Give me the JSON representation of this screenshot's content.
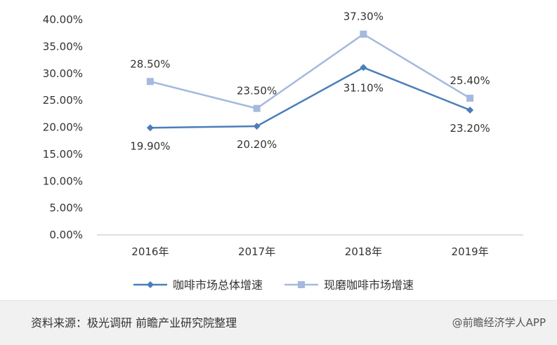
{
  "chart_data": {
    "type": "line",
    "categories": [
      "2016年",
      "2017年",
      "2018年",
      "2019年"
    ],
    "series": [
      {
        "name": "咖啡市场总体增速",
        "values": [
          19.9,
          20.2,
          31.1,
          23.2
        ],
        "color": "#4a7ebb",
        "marker": "diamond",
        "labels": [
          "19.90%",
          "20.20%",
          "31.10%",
          "23.20%"
        ]
      },
      {
        "name": "现磨咖啡市场增速",
        "values": [
          28.5,
          23.5,
          37.3,
          25.4
        ],
        "color": "#a5b9de",
        "marker": "square",
        "labels": [
          "28.50%",
          "23.50%",
          "37.30%",
          "25.40%"
        ]
      }
    ],
    "ylim": [
      0,
      40
    ],
    "yticks": [
      "0.00%",
      "5.00%",
      "10.00%",
      "15.00%",
      "20.00%",
      "25.00%",
      "30.00%",
      "35.00%",
      "40.00%"
    ],
    "grid": false,
    "legend_position": "bottom"
  },
  "footer": {
    "source": "资料来源：极光调研 前瞻产业研究院整理",
    "brand": "@前瞻经济学人APP"
  }
}
